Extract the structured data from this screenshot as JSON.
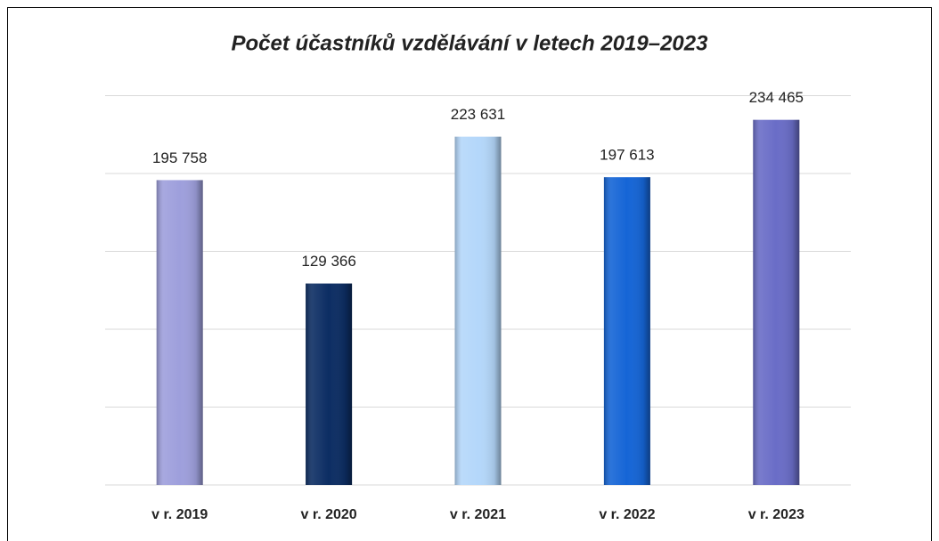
{
  "chart_data": {
    "type": "bar",
    "title": "Počet účastníků vzdělávání v letech 2019–2023",
    "categories": [
      "v r. 2019",
      "v r. 2020",
      "v r. 2021",
      "v r. 2022",
      "v r. 2023"
    ],
    "values": [
      195758,
      129366,
      223631,
      197613,
      234465
    ],
    "value_labels": [
      "195 758",
      "129 366",
      "223 631",
      "197 613",
      "234 465"
    ],
    "colors": [
      "#9e9fdc",
      "#0c2d63",
      "#b4d7fa",
      "#1565d6",
      "#6a6dc7"
    ],
    "ylim": [
      0,
      250000
    ],
    "yticks": [
      0,
      50000,
      100000,
      150000,
      200000,
      250000
    ],
    "grid": true
  }
}
